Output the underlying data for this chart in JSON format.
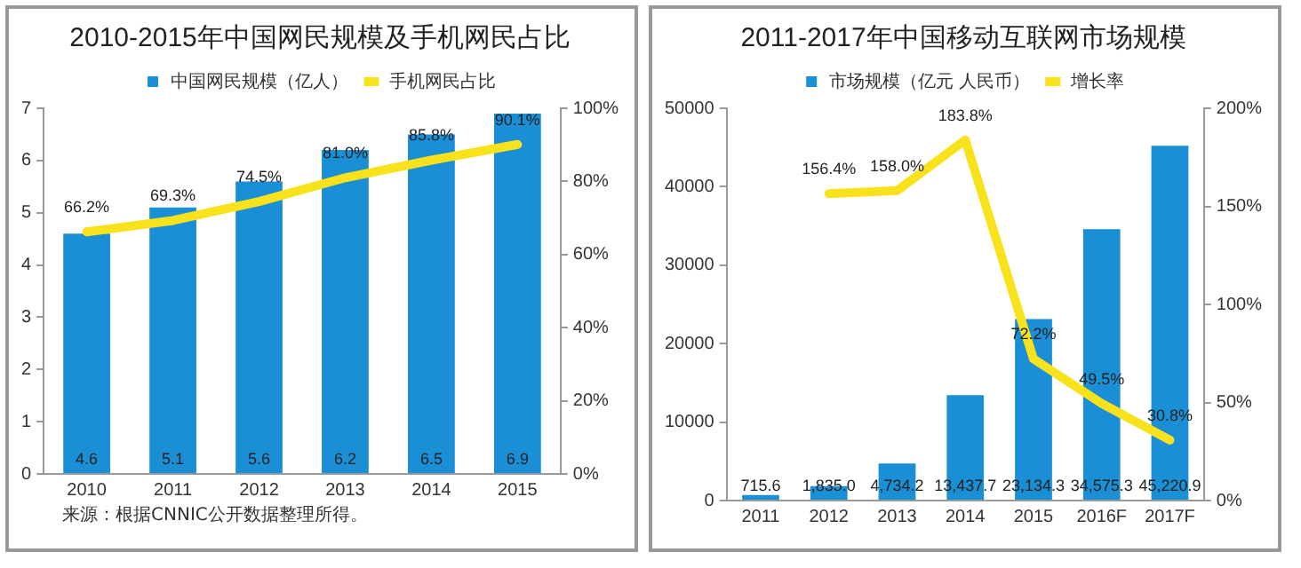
{
  "chart_data": [
    {
      "type": "bar",
      "title": "2010-2015年中国网民规模及手机网民占比",
      "categories": [
        "2010",
        "2011",
        "2012",
        "2013",
        "2014",
        "2015"
      ],
      "series": [
        {
          "name": "中国网民规模（亿人）",
          "color": "#1a8fd6",
          "values": [
            4.6,
            5.1,
            5.6,
            6.2,
            6.5,
            6.9
          ],
          "value_labels": [
            "4.6",
            "5.1",
            "5.6",
            "6.2",
            "6.5",
            "6.9"
          ]
        },
        {
          "name": "手机网民占比",
          "type": "line",
          "axis": "y2",
          "color": "#f7e21b",
          "values": [
            66.2,
            69.3,
            74.5,
            81.0,
            85.8,
            90.1
          ],
          "value_labels": [
            "66.2%",
            "69.3%",
            "74.5%",
            "81.0%",
            "85.8%",
            "90.1%"
          ]
        }
      ],
      "ylim": [
        0,
        7
      ],
      "yticks": [
        0,
        1,
        2,
        3,
        4,
        5,
        6,
        7
      ],
      "y2lim": [
        0,
        100
      ],
      "y2ticks": [
        {
          "value": 0,
          "label": "0%"
        },
        {
          "value": 20,
          "label": "20%"
        },
        {
          "value": 40,
          "label": "40%"
        },
        {
          "value": 60,
          "label": "60%"
        },
        {
          "value": 80,
          "label": "80%"
        },
        {
          "value": 100,
          "label": "100%"
        }
      ],
      "grid": false,
      "legend": "top",
      "marker": "none",
      "annotations": [
        "来源：根据CNNIC公开数据整理所得。"
      ]
    },
    {
      "type": "bar",
      "title": "2011-2017年中国移动互联网市场规模",
      "categories": [
        "2011",
        "2012",
        "2013",
        "2014",
        "2015",
        "2016F",
        "2017F"
      ],
      "series": [
        {
          "name": "市场规模（亿元 人民币）",
          "color": "#1a8fd6",
          "values": [
            715.6,
            1835.0,
            4734.2,
            13437.7,
            23134.3,
            34575.3,
            45220.9
          ],
          "value_labels": [
            "715.6",
            "1,835.0",
            "4,734.2",
            "13,437.7",
            "23,134.3",
            "34,575.3",
            "45,220.9"
          ]
        },
        {
          "name": "增长率",
          "type": "line",
          "axis": "y2",
          "color": "#f7e21b",
          "values": [
            null,
            156.4,
            158.0,
            183.8,
            72.2,
            49.5,
            30.8
          ],
          "value_labels": [
            null,
            "156.4%",
            "158.0%",
            "183.8%",
            "72.2%",
            "49.5%",
            "30.8%"
          ]
        }
      ],
      "ylim": [
        0,
        50000
      ],
      "yticks": [
        0,
        10000,
        20000,
        30000,
        40000,
        50000
      ],
      "y2lim": [
        0,
        200
      ],
      "y2ticks": [
        {
          "value": 0,
          "label": "0%"
        },
        {
          "value": 50,
          "label": "50%"
        },
        {
          "value": 100,
          "label": "100%"
        },
        {
          "value": 150,
          "label": "150%"
        },
        {
          "value": 200,
          "label": "200%"
        }
      ],
      "grid": false,
      "legend": "top",
      "marker": "none"
    }
  ]
}
